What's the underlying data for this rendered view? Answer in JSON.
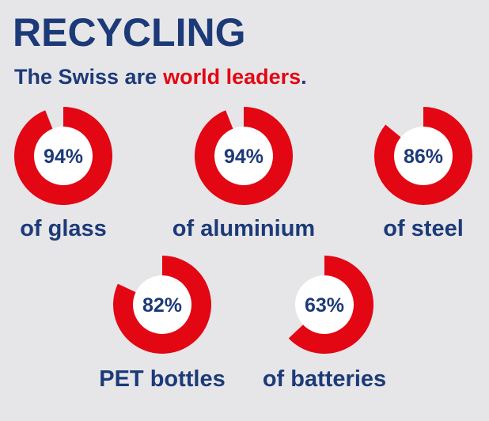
{
  "chart_data": {
    "type": "donut",
    "title": "RECYCLING",
    "subtitle": [
      "The Swiss are",
      "world leaders",
      "."
    ],
    "subtitle_colors": [
      "#1d3a78",
      "#e30613",
      "#1d3a78"
    ],
    "categories": [
      "of glass",
      "of aluminium",
      "of steel",
      "PET bottles",
      "of batteries"
    ],
    "values": [
      94,
      94,
      86,
      82,
      63
    ],
    "value_labels": [
      "94%",
      "94%",
      "86%",
      "82%",
      "63%"
    ],
    "color": "#e30613"
  }
}
